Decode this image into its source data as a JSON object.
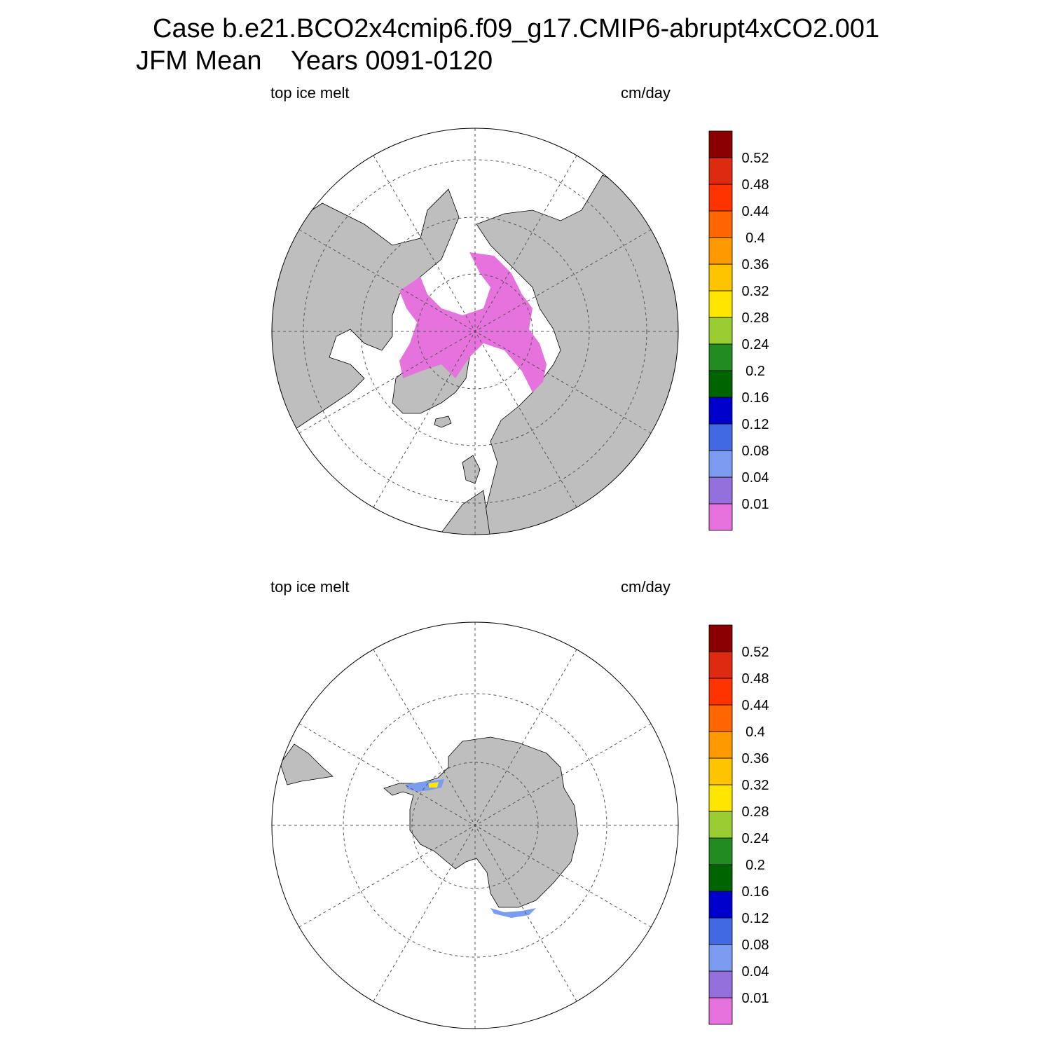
{
  "title": {
    "line1": "Case b.e21.BCO2x4cmip6.f09_g17.CMIP6-abrupt4xCO2.001",
    "line2": "JFM Mean    Years 0091-0120"
  },
  "panels": [
    {
      "id": "north",
      "left_label": "top ice melt",
      "right_label": "cm/day",
      "hemisphere": "north-polar-stereographic"
    },
    {
      "id": "south",
      "left_label": "top ice melt",
      "right_label": "cm/day",
      "hemisphere": "south-polar-stereographic"
    }
  ],
  "colorbar": {
    "levels": [
      "0.01",
      "0.04",
      "0.08",
      "0.12",
      "0.16",
      "0.2",
      "0.24",
      "0.28",
      "0.32",
      "0.36",
      "0.4",
      "0.44",
      "0.48",
      "0.52"
    ],
    "colors": [
      "#e673dd",
      "#9370db",
      "#7b9cf0",
      "#4169e1",
      "#0000cd",
      "#006400",
      "#228b22",
      "#9acd32",
      "#ffe600",
      "#ffc400",
      "#ff9900",
      "#ff6600",
      "#ff3300",
      "#dd2a10",
      "#8b0000"
    ]
  },
  "map_colors": {
    "land": "#bebebe",
    "ocean": "#ffffff",
    "melt_north": "#e673dd"
  }
}
